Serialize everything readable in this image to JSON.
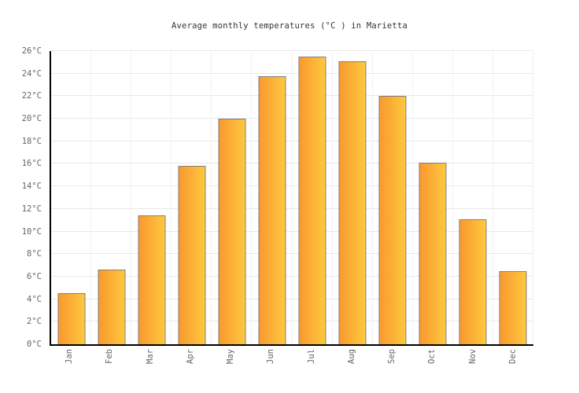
{
  "title": "Average monthly temperatures (°C ) in Marietta",
  "colors": {
    "title_text": "#333333",
    "label_text": "#666666",
    "axis": "#000000",
    "hgrid": "#e8e8e8",
    "vgrid": "#f2f2f2",
    "bar_border": "#7f7f7f",
    "bar_gradient_left": "#f9992f",
    "bar_gradient_right": "#fec83e"
  },
  "chart_data": {
    "type": "bar",
    "title": "Average monthly temperatures (°C ) in Marietta",
    "categories": [
      "Jan",
      "Feb",
      "Mar",
      "Apr",
      "May",
      "Jun",
      "Jul",
      "Aug",
      "Sep",
      "Oct",
      "Nov",
      "Dec"
    ],
    "values": [
      4.5,
      6.6,
      11.4,
      15.8,
      20.0,
      23.8,
      25.5,
      25.1,
      22.0,
      16.1,
      11.1,
      6.5
    ],
    "unit": "°C",
    "xlabel": "",
    "ylabel": "",
    "ylim": [
      0,
      26
    ],
    "ytick_step": 2,
    "ytick_labels": [
      "0°C",
      "2°C",
      "4°C",
      "6°C",
      "8°C",
      "10°C",
      "12°C",
      "14°C",
      "16°C",
      "18°C",
      "20°C",
      "22°C",
      "24°C",
      "26°C"
    ],
    "grid": true,
    "legend": false,
    "bar_orientation": "vertical",
    "xlabel_rotation_deg": -90
  }
}
